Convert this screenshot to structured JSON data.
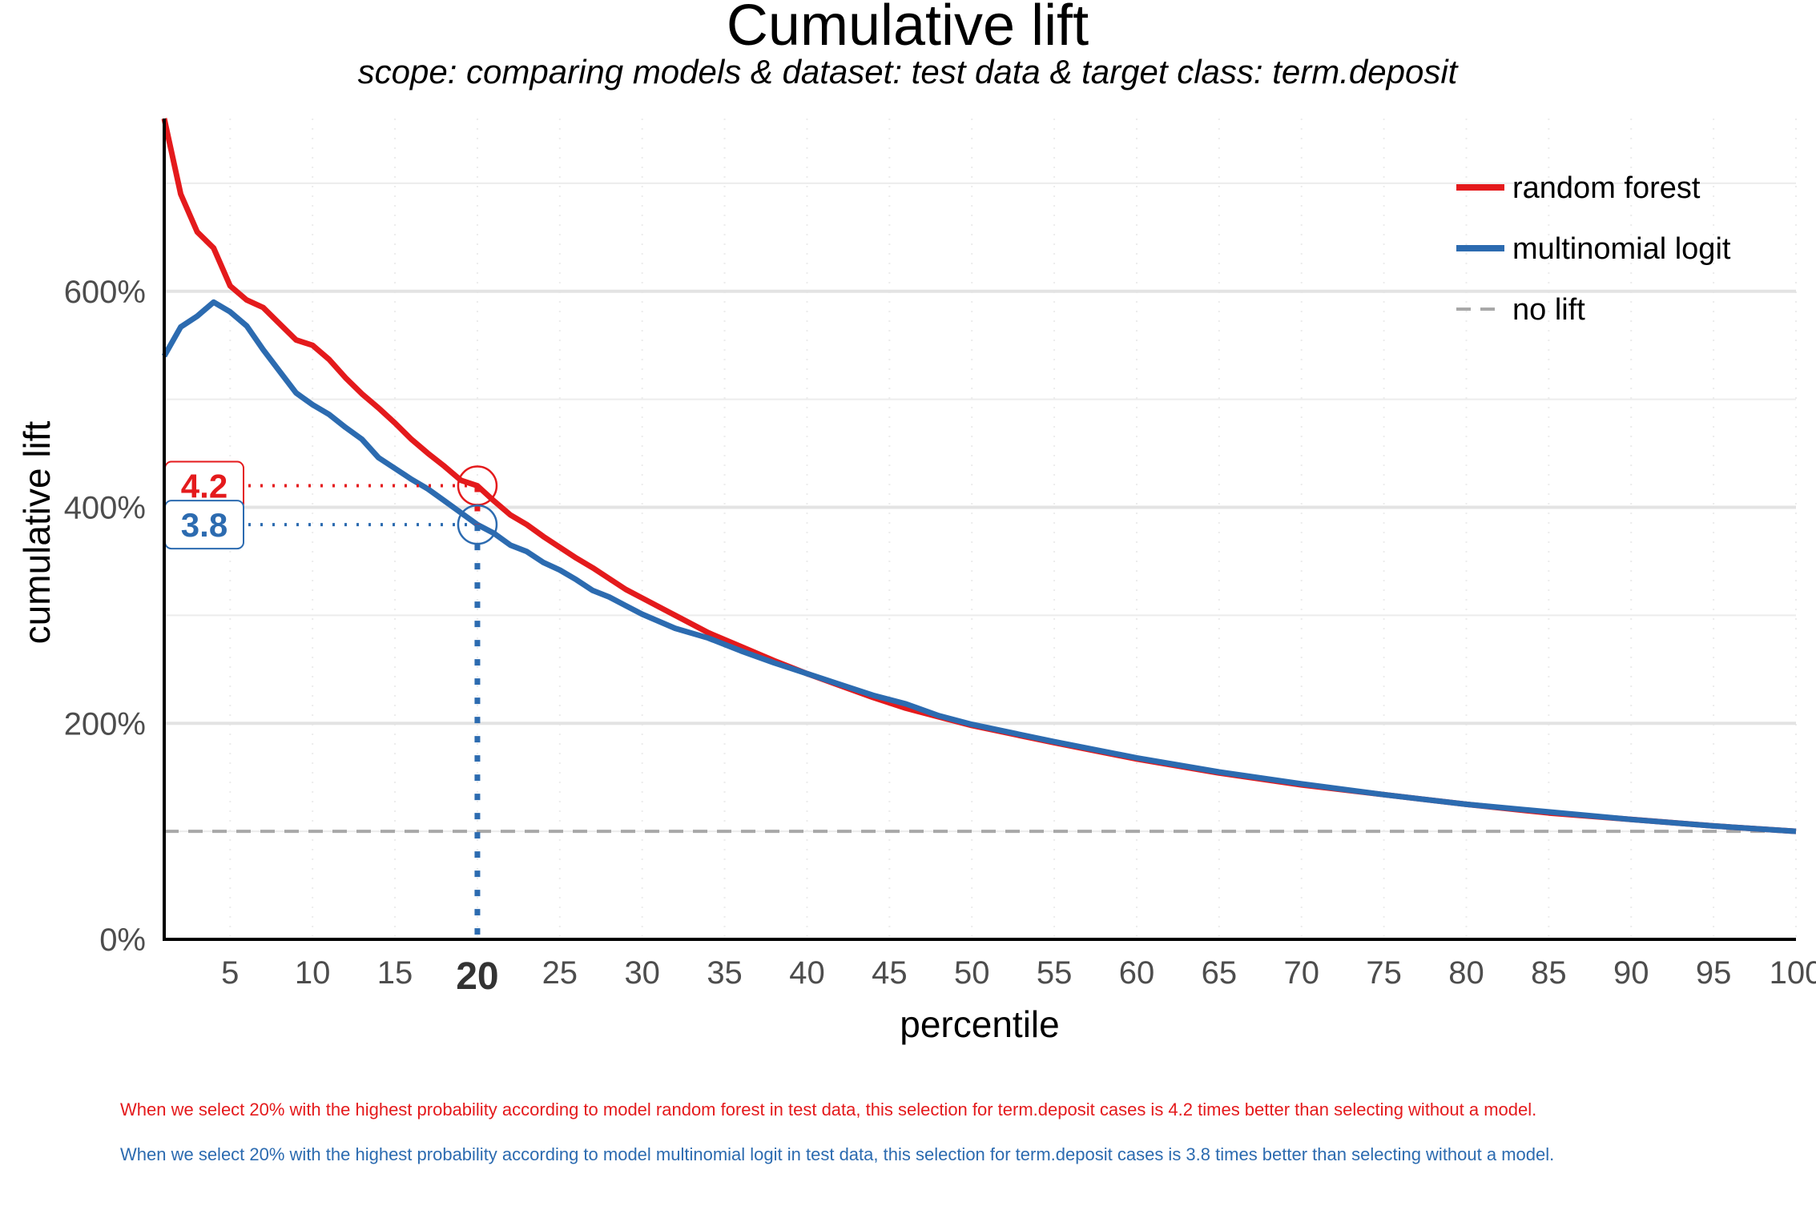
{
  "colors": {
    "random_forest": "#E41A1C",
    "multinomial_logit": "#2C6BB0",
    "no_lift": "#A8A8A8",
    "grid_major": "#E3E3E3",
    "grid_minor": "#ECECEC"
  },
  "chart_data": {
    "type": "line",
    "title": "Cumulative lift",
    "subtitle": "scope: comparing models & dataset: test data & target class: term.deposit",
    "xlabel": "percentile",
    "ylabel": "cumulative lift",
    "xlim": [
      1,
      100
    ],
    "ylim": [
      0,
      7.6
    ],
    "x_ticks": [
      5,
      10,
      15,
      20,
      25,
      30,
      35,
      40,
      45,
      50,
      55,
      60,
      65,
      70,
      75,
      80,
      85,
      90,
      95,
      100
    ],
    "x_tick_labels": [
      "5",
      "10",
      "15",
      "20",
      "25",
      "30",
      "35",
      "40",
      "45",
      "50",
      "55",
      "60",
      "65",
      "70",
      "75",
      "80",
      "85",
      "90",
      "95",
      "100"
    ],
    "highlight_x": 20,
    "highlight_x_label": "20",
    "y_ticks": [
      0,
      2,
      4,
      6
    ],
    "y_tick_labels": [
      "0%",
      "200%",
      "400%",
      "600%"
    ],
    "grid": true,
    "legend_position": "top-right",
    "series": [
      {
        "name": "random forest",
        "color": "#E41A1C",
        "x": [
          1,
          2,
          3,
          4,
          5,
          6,
          7,
          8,
          9,
          10,
          11,
          12,
          13,
          14,
          15,
          16,
          17,
          18,
          19,
          20,
          21,
          22,
          23,
          24,
          25,
          26,
          27,
          28,
          29,
          30,
          32,
          34,
          36,
          38,
          40,
          42,
          44,
          46,
          48,
          50,
          55,
          60,
          65,
          70,
          75,
          80,
          85,
          90,
          95,
          100
        ],
        "values": [
          7.6,
          6.9,
          6.55,
          6.4,
          6.05,
          5.92,
          5.85,
          5.7,
          5.55,
          5.5,
          5.37,
          5.2,
          5.05,
          4.92,
          4.78,
          4.63,
          4.5,
          4.38,
          4.25,
          4.2,
          4.06,
          3.93,
          3.84,
          3.73,
          3.63,
          3.53,
          3.44,
          3.34,
          3.24,
          3.16,
          3.0,
          2.84,
          2.71,
          2.58,
          2.46,
          2.35,
          2.24,
          2.14,
          2.06,
          1.98,
          1.82,
          1.67,
          1.54,
          1.43,
          1.34,
          1.25,
          1.17,
          1.11,
          1.05,
          1.0
        ]
      },
      {
        "name": "multinomial logit",
        "color": "#2C6BB0",
        "x": [
          1,
          2,
          3,
          4,
          5,
          6,
          7,
          8,
          9,
          10,
          11,
          12,
          13,
          14,
          15,
          16,
          17,
          18,
          19,
          20,
          21,
          22,
          23,
          24,
          25,
          26,
          27,
          28,
          29,
          30,
          32,
          34,
          36,
          38,
          40,
          42,
          44,
          46,
          48,
          50,
          55,
          60,
          65,
          70,
          75,
          80,
          85,
          90,
          95,
          100
        ],
        "values": [
          5.4,
          5.67,
          5.77,
          5.9,
          5.81,
          5.68,
          5.46,
          5.26,
          5.06,
          4.95,
          4.86,
          4.74,
          4.63,
          4.46,
          4.36,
          4.26,
          4.17,
          4.06,
          3.95,
          3.84,
          3.76,
          3.65,
          3.59,
          3.49,
          3.42,
          3.33,
          3.23,
          3.17,
          3.09,
          3.01,
          2.88,
          2.79,
          2.67,
          2.56,
          2.46,
          2.36,
          2.26,
          2.18,
          2.07,
          1.99,
          1.83,
          1.68,
          1.55,
          1.44,
          1.34,
          1.25,
          1.18,
          1.11,
          1.05,
          1.0
        ]
      },
      {
        "name": "no lift",
        "color": "#A8A8A8",
        "dashed": true,
        "x": [
          1,
          100
        ],
        "values": [
          1.0,
          1.0
        ]
      }
    ],
    "annotations": [
      {
        "series": "random forest",
        "x": 20,
        "y": 4.2,
        "label": "4.2",
        "color": "#E41A1C"
      },
      {
        "series": "multinomial logit",
        "x": 20,
        "y": 3.84,
        "label": "3.8",
        "color": "#2C6BB0"
      }
    ],
    "notes": [
      "When we select 20% with the highest probability according to model random forest in test data, this selection for term.deposit cases is 4.2 times better than selecting without a model.",
      "When we select 20% with the highest probability according to model multinomial logit in test data, this selection for term.deposit cases is 3.8 times better than selecting without a model."
    ]
  }
}
